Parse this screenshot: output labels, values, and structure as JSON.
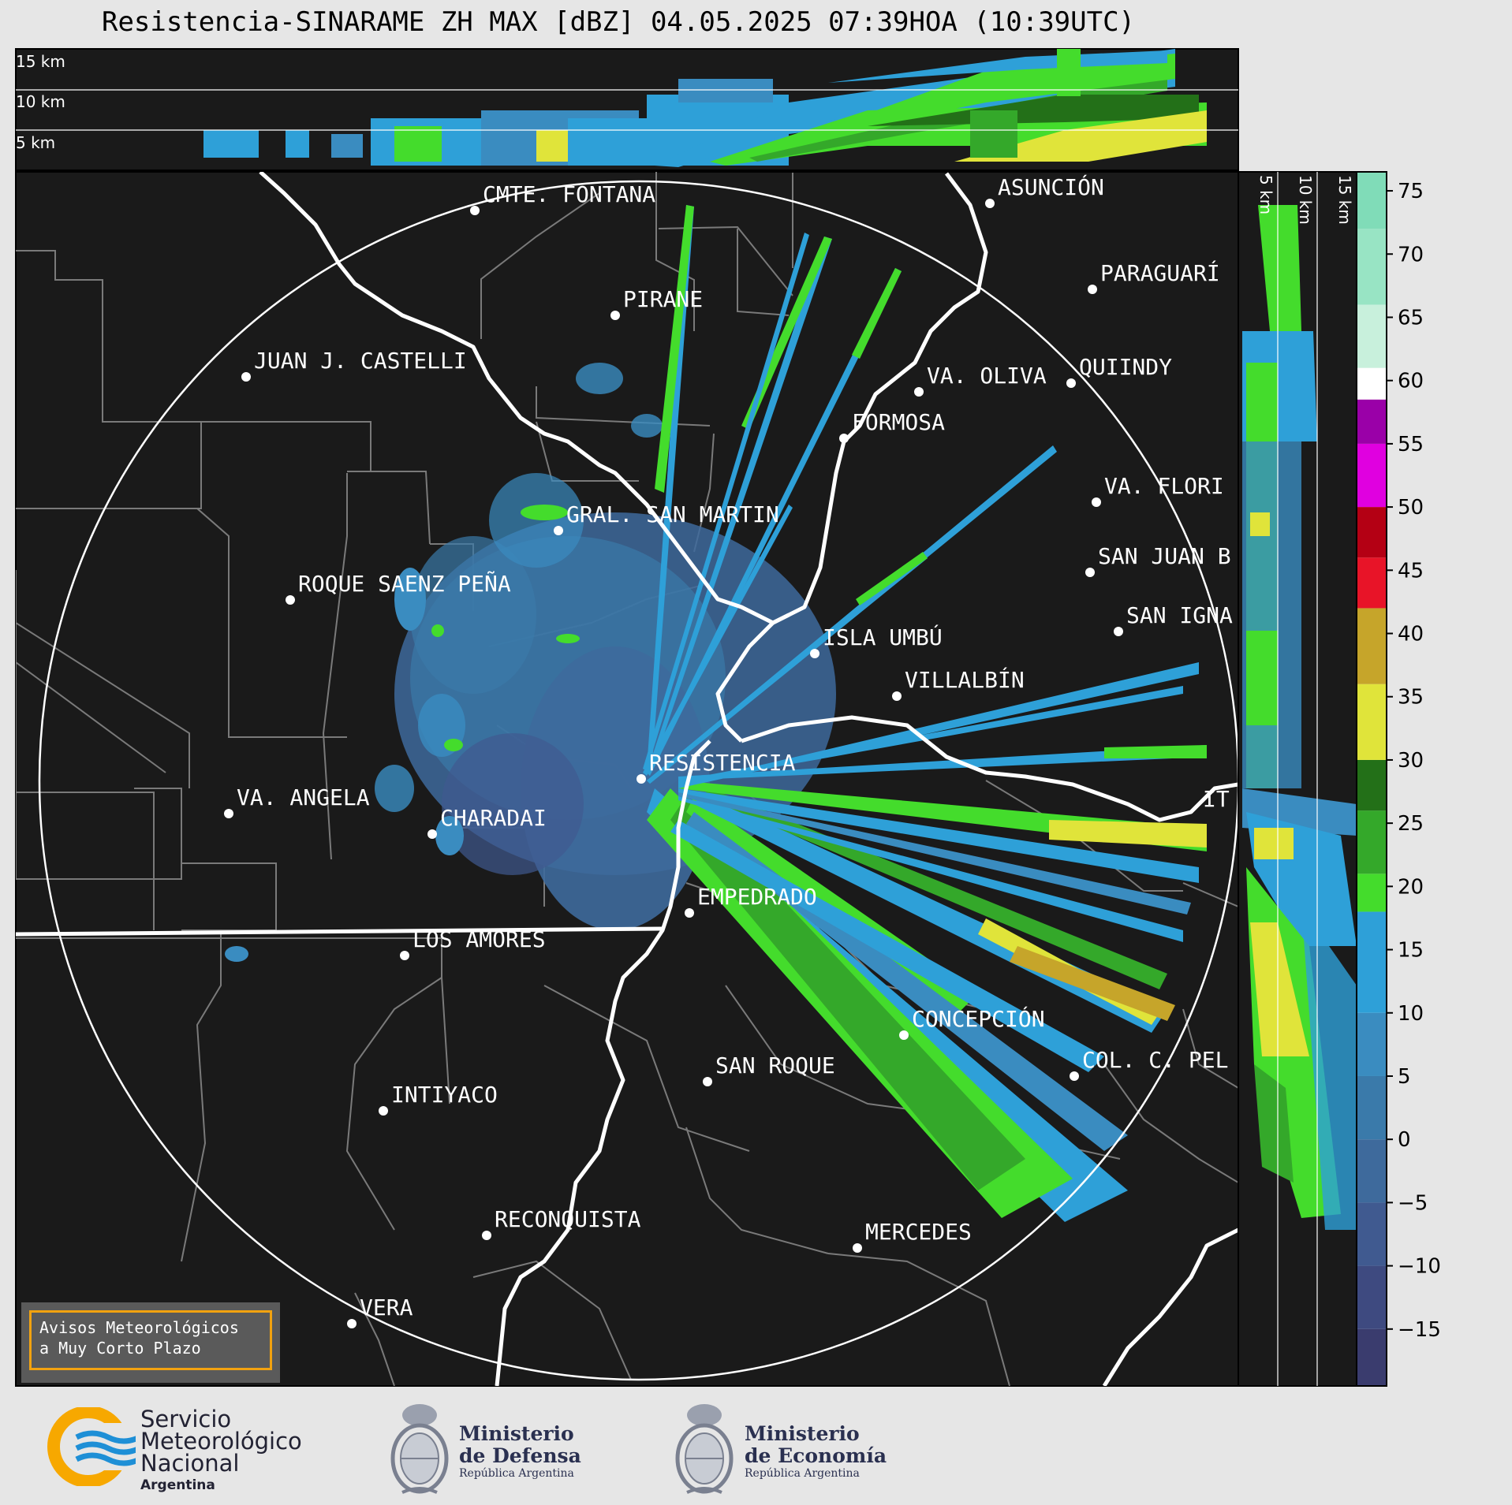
{
  "title": "Resistencia-SINARAME ZH MAX [dBZ] 04.05.2025 07:39HOA (10:39UTC)",
  "top_panel": {
    "heights": [
      "15 km",
      "10 km",
      "5 km"
    ]
  },
  "side_panel": {
    "heights": [
      "5 km",
      "10 km",
      "15 km"
    ]
  },
  "colorbar": {
    "ticks": [
      "75",
      "70",
      "65",
      "60",
      "55",
      "50",
      "45",
      "40",
      "35",
      "30",
      "25",
      "20",
      "15",
      "10",
      "5",
      "0",
      "−5",
      "−10",
      "−15"
    ],
    "colors": {
      "c_m15": "#3a3c6e",
      "c_m10": "#3e4a80",
      "c_m5": "#405a90",
      "c_0": "#3e6a9c",
      "c_5": "#3a7aaa",
      "c_10": "#3a8cc0",
      "c_15": "#2ea0d8",
      "c_20": "#44dc2c",
      "c_25": "#34a82a",
      "c_30": "#237018",
      "c_35": "#e0e43a",
      "c_40": "#c6a52a",
      "c_45": "#e81428",
      "c_50": "#b40014",
      "c_55": "#e000e0",
      "c_58": "#9a00a8",
      "c_60": "#ffffff",
      "c_65": "#c8f0dc",
      "c_70": "#98e4c4",
      "c_75": "#80dcb8"
    }
  },
  "map": {
    "background": "#1a1a1a",
    "cities": [
      {
        "name": "CMTE. FONTANA"
      },
      {
        "name": "ASUNCIÓN"
      },
      {
        "name": "PARAGUARÍ"
      },
      {
        "name": "PIRANE"
      },
      {
        "name": "JUAN J. CASTELLI"
      },
      {
        "name": "VA. OLIVA"
      },
      {
        "name": "QUIINDY"
      },
      {
        "name": "FORMOSA"
      },
      {
        "name": "VA. FLORI"
      },
      {
        "name": "GRAL. SAN MARTIN"
      },
      {
        "name": "SAN JUAN B"
      },
      {
        "name": "ROQUE SAENZ PEÑA"
      },
      {
        "name": "SAN IGNA"
      },
      {
        "name": "ISLA UMBÚ"
      },
      {
        "name": "VILLALBÍN"
      },
      {
        "name": "RESISTENCIA"
      },
      {
        "name": "IT"
      },
      {
        "name": "VA. ANGELA"
      },
      {
        "name": "CHARADAI"
      },
      {
        "name": "EMPEDRADO"
      },
      {
        "name": "LOS AMORES"
      },
      {
        "name": "CONCEPCIÓN"
      },
      {
        "name": "SAN ROQUE"
      },
      {
        "name": "COL. C. PEL"
      },
      {
        "name": "INTIYACO"
      },
      {
        "name": "RECONQUISTA"
      },
      {
        "name": "MERCEDES"
      },
      {
        "name": "VERA"
      }
    ]
  },
  "aviso": {
    "line1": "Avisos Meteorológicos",
    "line2": "a Muy Corto Plazo"
  },
  "footer": {
    "smn": {
      "line1": "Servicio",
      "line2": "Meteorológico",
      "line3": "Nacional",
      "line4": "Argentina"
    },
    "defensa": {
      "line1": "Ministerio",
      "line2": "de Defensa",
      "line3": "República Argentina"
    },
    "economia": {
      "line1": "Ministerio",
      "line2": "de Economía",
      "line3": "República Argentina"
    }
  }
}
